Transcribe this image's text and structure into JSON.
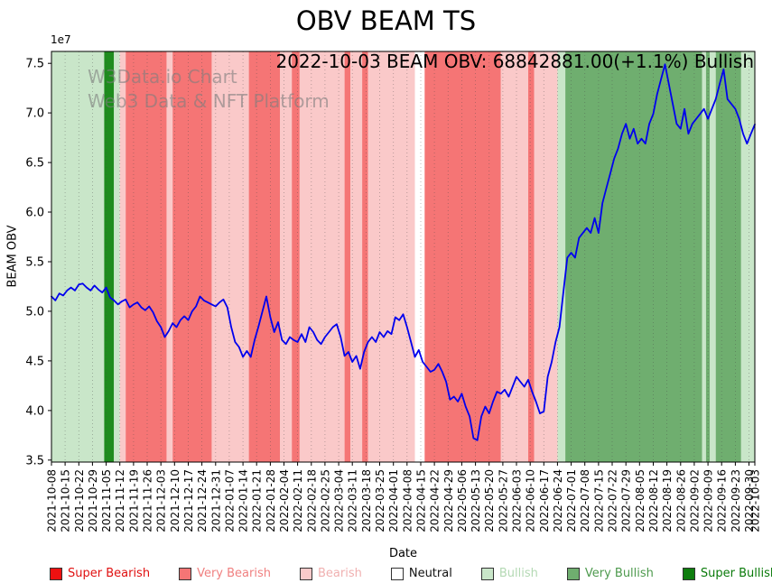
{
  "figure": {
    "title": "OBV BEAM TS",
    "annotation": "2022-10-03 BEAM OBV: 68842881.00(+1.1%) Bullish",
    "watermark_line1": "W3Data.io Chart",
    "watermark_line2": "Web3 Data & NFT Platform",
    "xlabel": "Date",
    "ylabel": "BEAM OBV",
    "y_offset_label": "1e7"
  },
  "colors": {
    "super_bearish": "#ee1111",
    "very_bearish": "#f57575",
    "bearish": "#fac9c9",
    "neutral": "#ffffff",
    "bullish": "#c9e6c9",
    "very_bullish": "#6fae6f",
    "super_bullish": "#1e8c1e",
    "line": "#0000ee",
    "grid": "rgba(70,70,70,0.45)",
    "spine": "#000000"
  },
  "legend": {
    "items": [
      {
        "label": "Super Bearish",
        "swatch": "#ee1111",
        "text": "#e01010"
      },
      {
        "label": "Very Bearish",
        "swatch": "#f57575",
        "text": "#f08080"
      },
      {
        "label": "Bearish",
        "swatch": "#fac9c9",
        "text": "#f0b0b0"
      },
      {
        "label": "Neutral",
        "swatch": "#ffffff",
        "text": "#111111"
      },
      {
        "label": "Bullish",
        "swatch": "#c9e6c9",
        "text": "#b4d9b4"
      },
      {
        "label": "Very Bullish",
        "swatch": "#6fae6f",
        "text": "#4e9a4e"
      },
      {
        "label": "Super Bullish",
        "swatch": "#0e7d0e",
        "text": "#0a7a0a"
      }
    ]
  },
  "chart_data": {
    "type": "line",
    "title": "OBV BEAM TS",
    "xlabel": "Date",
    "ylabel": "BEAM OBV",
    "x_range": [
      "2021-10-08",
      "2022-10-03"
    ],
    "ylim": [
      34800000,
      76200000
    ],
    "ylim_units": [
      3.48,
      7.62
    ],
    "values_scale": 10000000,
    "y_ticks": [
      3.5,
      4.0,
      4.5,
      5.0,
      5.5,
      6.0,
      6.5,
      7.0,
      7.5
    ],
    "x_ticks": [
      "2021-10-08",
      "2021-10-15",
      "2021-10-22",
      "2021-10-29",
      "2021-11-05",
      "2021-11-12",
      "2021-11-19",
      "2021-11-26",
      "2021-12-03",
      "2021-12-10",
      "2021-12-17",
      "2021-12-24",
      "2021-12-31",
      "2022-01-07",
      "2022-01-14",
      "2022-01-21",
      "2022-01-28",
      "2022-02-04",
      "2022-02-11",
      "2022-02-18",
      "2022-02-25",
      "2022-03-04",
      "2022-03-11",
      "2022-03-18",
      "2022-03-25",
      "2022-04-01",
      "2022-04-08",
      "2022-04-15",
      "2022-04-22",
      "2022-04-29",
      "2022-05-06",
      "2022-05-13",
      "2022-05-20",
      "2022-05-27",
      "2022-06-03",
      "2022-06-10",
      "2022-06-17",
      "2022-06-24",
      "2022-07-01",
      "2022-07-08",
      "2022-07-15",
      "2022-07-22",
      "2022-07-29",
      "2022-08-05",
      "2022-08-12",
      "2022-08-19",
      "2022-08-26",
      "2022-09-02",
      "2022-09-09",
      "2022-09-16",
      "2022-09-23",
      "2022-09-30",
      "2022-10-03"
    ],
    "sentiment_bands": [
      {
        "start": "2021-10-08",
        "end": "2021-11-04",
        "sentiment": "bullish"
      },
      {
        "start": "2021-11-04",
        "end": "2021-11-09",
        "sentiment": "super_bullish"
      },
      {
        "start": "2021-11-09",
        "end": "2021-11-12",
        "sentiment": "bullish"
      },
      {
        "start": "2021-11-12",
        "end": "2021-11-15",
        "sentiment": "bearish"
      },
      {
        "start": "2021-11-15",
        "end": "2021-12-06",
        "sentiment": "very_bearish"
      },
      {
        "start": "2021-12-06",
        "end": "2021-12-09",
        "sentiment": "bearish"
      },
      {
        "start": "2021-12-09",
        "end": "2021-12-29",
        "sentiment": "very_bearish"
      },
      {
        "start": "2021-12-29",
        "end": "2022-01-17",
        "sentiment": "bearish"
      },
      {
        "start": "2022-01-17",
        "end": "2022-02-02",
        "sentiment": "very_bearish"
      },
      {
        "start": "2022-02-02",
        "end": "2022-02-08",
        "sentiment": "bearish"
      },
      {
        "start": "2022-02-08",
        "end": "2022-02-12",
        "sentiment": "very_bearish"
      },
      {
        "start": "2022-02-12",
        "end": "2022-03-07",
        "sentiment": "bearish"
      },
      {
        "start": "2022-03-07",
        "end": "2022-03-10",
        "sentiment": "very_bearish"
      },
      {
        "start": "2022-03-10",
        "end": "2022-03-16",
        "sentiment": "bearish"
      },
      {
        "start": "2022-03-16",
        "end": "2022-03-19",
        "sentiment": "very_bearish"
      },
      {
        "start": "2022-03-19",
        "end": "2022-04-12",
        "sentiment": "bearish"
      },
      {
        "start": "2022-04-12",
        "end": "2022-04-17",
        "sentiment": "neutral"
      },
      {
        "start": "2022-04-17",
        "end": "2022-05-26",
        "sentiment": "very_bearish"
      },
      {
        "start": "2022-05-26",
        "end": "2022-06-09",
        "sentiment": "bearish"
      },
      {
        "start": "2022-06-09",
        "end": "2022-06-12",
        "sentiment": "very_bearish"
      },
      {
        "start": "2022-06-12",
        "end": "2022-06-24",
        "sentiment": "bearish"
      },
      {
        "start": "2022-06-24",
        "end": "2022-06-28",
        "sentiment": "bullish"
      },
      {
        "start": "2022-06-28",
        "end": "2022-09-06",
        "sentiment": "very_bullish"
      },
      {
        "start": "2022-09-06",
        "end": "2022-09-08",
        "sentiment": "bullish"
      },
      {
        "start": "2022-09-08",
        "end": "2022-09-10",
        "sentiment": "very_bullish"
      },
      {
        "start": "2022-09-10",
        "end": "2022-09-13",
        "sentiment": "bullish"
      },
      {
        "start": "2022-09-13",
        "end": "2022-09-26",
        "sentiment": "very_bullish"
      },
      {
        "start": "2022-09-26",
        "end": "2022-10-03",
        "sentiment": "bullish"
      }
    ],
    "series": [
      {
        "name": "BEAM OBV",
        "points": [
          [
            "2021-10-08",
            5.15
          ],
          [
            "2021-10-10",
            5.11
          ],
          [
            "2021-10-12",
            5.18
          ],
          [
            "2021-10-14",
            5.16
          ],
          [
            "2021-10-16",
            5.21
          ],
          [
            "2021-10-18",
            5.24
          ],
          [
            "2021-10-20",
            5.21
          ],
          [
            "2021-10-22",
            5.27
          ],
          [
            "2021-10-24",
            5.28
          ],
          [
            "2021-10-26",
            5.24
          ],
          [
            "2021-10-28",
            5.21
          ],
          [
            "2021-10-30",
            5.26
          ],
          [
            "2021-11-01",
            5.22
          ],
          [
            "2021-11-03",
            5.19
          ],
          [
            "2021-11-05",
            5.24
          ],
          [
            "2021-11-07",
            5.14
          ],
          [
            "2021-11-09",
            5.11
          ],
          [
            "2021-11-11",
            5.07
          ],
          [
            "2021-11-13",
            5.1
          ],
          [
            "2021-11-15",
            5.12
          ],
          [
            "2021-11-17",
            5.04
          ],
          [
            "2021-11-19",
            5.07
          ],
          [
            "2021-11-21",
            5.09
          ],
          [
            "2021-11-23",
            5.04
          ],
          [
            "2021-11-25",
            5.01
          ],
          [
            "2021-11-27",
            5.05
          ],
          [
            "2021-11-29",
            4.99
          ],
          [
            "2021-12-01",
            4.9
          ],
          [
            "2021-12-03",
            4.84
          ],
          [
            "2021-12-05",
            4.74
          ],
          [
            "2021-12-07",
            4.8
          ],
          [
            "2021-12-09",
            4.88
          ],
          [
            "2021-12-11",
            4.84
          ],
          [
            "2021-12-13",
            4.91
          ],
          [
            "2021-12-15",
            4.95
          ],
          [
            "2021-12-17",
            4.91
          ],
          [
            "2021-12-19",
            5.0
          ],
          [
            "2021-12-21",
            5.05
          ],
          [
            "2021-12-23",
            5.15
          ],
          [
            "2021-12-25",
            5.11
          ],
          [
            "2021-12-27",
            5.09
          ],
          [
            "2021-12-29",
            5.07
          ],
          [
            "2021-12-31",
            5.05
          ],
          [
            "2022-01-02",
            5.09
          ],
          [
            "2022-01-04",
            5.12
          ],
          [
            "2022-01-06",
            5.04
          ],
          [
            "2022-01-08",
            4.84
          ],
          [
            "2022-01-10",
            4.69
          ],
          [
            "2022-01-12",
            4.64
          ],
          [
            "2022-01-14",
            4.54
          ],
          [
            "2022-01-16",
            4.6
          ],
          [
            "2022-01-18",
            4.54
          ],
          [
            "2022-01-20",
            4.71
          ],
          [
            "2022-01-22",
            4.85
          ],
          [
            "2022-01-24",
            5.0
          ],
          [
            "2022-01-26",
            5.15
          ],
          [
            "2022-01-28",
            4.94
          ],
          [
            "2022-01-30",
            4.79
          ],
          [
            "2022-02-01",
            4.89
          ],
          [
            "2022-02-03",
            4.71
          ],
          [
            "2022-02-05",
            4.67
          ],
          [
            "2022-02-07",
            4.74
          ],
          [
            "2022-02-09",
            4.71
          ],
          [
            "2022-02-11",
            4.69
          ],
          [
            "2022-02-13",
            4.77
          ],
          [
            "2022-02-15",
            4.69
          ],
          [
            "2022-02-17",
            4.84
          ],
          [
            "2022-02-19",
            4.79
          ],
          [
            "2022-02-21",
            4.71
          ],
          [
            "2022-02-23",
            4.67
          ],
          [
            "2022-02-25",
            4.74
          ],
          [
            "2022-02-27",
            4.79
          ],
          [
            "2022-03-01",
            4.84
          ],
          [
            "2022-03-03",
            4.87
          ],
          [
            "2022-03-05",
            4.74
          ],
          [
            "2022-03-07",
            4.55
          ],
          [
            "2022-03-09",
            4.59
          ],
          [
            "2022-03-11",
            4.49
          ],
          [
            "2022-03-13",
            4.55
          ],
          [
            "2022-03-15",
            4.42
          ],
          [
            "2022-03-17",
            4.59
          ],
          [
            "2022-03-19",
            4.69
          ],
          [
            "2022-03-21",
            4.74
          ],
          [
            "2022-03-23",
            4.69
          ],
          [
            "2022-03-25",
            4.79
          ],
          [
            "2022-03-27",
            4.74
          ],
          [
            "2022-03-29",
            4.8
          ],
          [
            "2022-03-31",
            4.77
          ],
          [
            "2022-04-02",
            4.94
          ],
          [
            "2022-04-04",
            4.91
          ],
          [
            "2022-04-06",
            4.97
          ],
          [
            "2022-04-08",
            4.84
          ],
          [
            "2022-04-10",
            4.69
          ],
          [
            "2022-04-12",
            4.54
          ],
          [
            "2022-04-14",
            4.61
          ],
          [
            "2022-04-16",
            4.49
          ],
          [
            "2022-04-18",
            4.44
          ],
          [
            "2022-04-20",
            4.39
          ],
          [
            "2022-04-22",
            4.41
          ],
          [
            "2022-04-24",
            4.47
          ],
          [
            "2022-04-26",
            4.39
          ],
          [
            "2022-04-28",
            4.29
          ],
          [
            "2022-04-30",
            4.11
          ],
          [
            "2022-05-02",
            4.14
          ],
          [
            "2022-05-04",
            4.09
          ],
          [
            "2022-05-06",
            4.17
          ],
          [
            "2022-05-08",
            4.04
          ],
          [
            "2022-05-10",
            3.94
          ],
          [
            "2022-05-12",
            3.72
          ],
          [
            "2022-05-14",
            3.7
          ],
          [
            "2022-05-16",
            3.94
          ],
          [
            "2022-05-18",
            4.04
          ],
          [
            "2022-05-20",
            3.97
          ],
          [
            "2022-05-22",
            4.09
          ],
          [
            "2022-05-24",
            4.19
          ],
          [
            "2022-05-26",
            4.17
          ],
          [
            "2022-05-28",
            4.21
          ],
          [
            "2022-05-30",
            4.14
          ],
          [
            "2022-06-01",
            4.24
          ],
          [
            "2022-06-03",
            4.34
          ],
          [
            "2022-06-05",
            4.29
          ],
          [
            "2022-06-07",
            4.24
          ],
          [
            "2022-06-09",
            4.31
          ],
          [
            "2022-06-11",
            4.19
          ],
          [
            "2022-06-13",
            4.09
          ],
          [
            "2022-06-15",
            3.97
          ],
          [
            "2022-06-17",
            3.99
          ],
          [
            "2022-06-19",
            4.34
          ],
          [
            "2022-06-21",
            4.49
          ],
          [
            "2022-06-23",
            4.69
          ],
          [
            "2022-06-25",
            4.84
          ],
          [
            "2022-06-27",
            5.19
          ],
          [
            "2022-06-29",
            5.54
          ],
          [
            "2022-07-01",
            5.59
          ],
          [
            "2022-07-03",
            5.54
          ],
          [
            "2022-07-05",
            5.74
          ],
          [
            "2022-07-07",
            5.79
          ],
          [
            "2022-07-09",
            5.84
          ],
          [
            "2022-07-11",
            5.79
          ],
          [
            "2022-07-13",
            5.94
          ],
          [
            "2022-07-15",
            5.79
          ],
          [
            "2022-07-17",
            6.09
          ],
          [
            "2022-07-19",
            6.24
          ],
          [
            "2022-07-21",
            6.39
          ],
          [
            "2022-07-23",
            6.54
          ],
          [
            "2022-07-25",
            6.64
          ],
          [
            "2022-07-27",
            6.79
          ],
          [
            "2022-07-29",
            6.89
          ],
          [
            "2022-07-31",
            6.74
          ],
          [
            "2022-08-02",
            6.84
          ],
          [
            "2022-08-04",
            6.69
          ],
          [
            "2022-08-06",
            6.74
          ],
          [
            "2022-08-08",
            6.69
          ],
          [
            "2022-08-10",
            6.89
          ],
          [
            "2022-08-12",
            6.99
          ],
          [
            "2022-08-14",
            7.19
          ],
          [
            "2022-08-16",
            7.34
          ],
          [
            "2022-08-18",
            7.49
          ],
          [
            "2022-08-20",
            7.29
          ],
          [
            "2022-08-22",
            7.09
          ],
          [
            "2022-08-24",
            6.89
          ],
          [
            "2022-08-26",
            6.84
          ],
          [
            "2022-08-28",
            7.04
          ],
          [
            "2022-08-30",
            6.79
          ],
          [
            "2022-09-01",
            6.89
          ],
          [
            "2022-09-03",
            6.94
          ],
          [
            "2022-09-05",
            6.99
          ],
          [
            "2022-09-07",
            7.04
          ],
          [
            "2022-09-09",
            6.94
          ],
          [
            "2022-09-11",
            7.04
          ],
          [
            "2022-09-13",
            7.14
          ],
          [
            "2022-09-15",
            7.29
          ],
          [
            "2022-09-17",
            7.44
          ],
          [
            "2022-09-19",
            7.14
          ],
          [
            "2022-09-21",
            7.09
          ],
          [
            "2022-09-23",
            7.04
          ],
          [
            "2022-09-25",
            6.94
          ],
          [
            "2022-09-27",
            6.79
          ],
          [
            "2022-09-29",
            6.69
          ],
          [
            "2022-10-01",
            6.79
          ],
          [
            "2022-10-03",
            6.884
          ]
        ]
      }
    ]
  }
}
